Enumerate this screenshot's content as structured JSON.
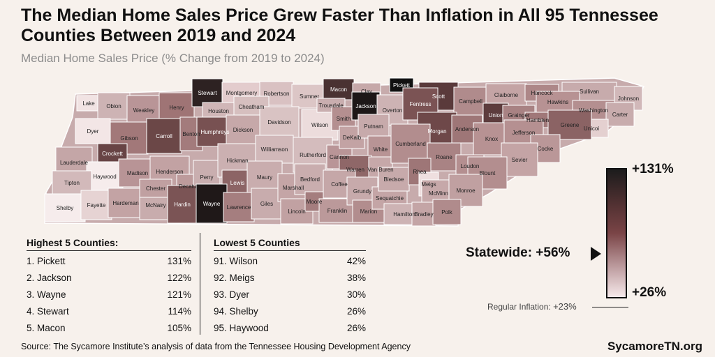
{
  "title": "The Median Home Sales Price Grew Faster Than Inflation in All 95 Tennessee Counties Between 2019 and 2024",
  "subtitle": "Median Home Sales Price (% Change from 2019 to 2024)",
  "counties": [
    {
      "name": "Lake",
      "color": "#f1e3e3"
    },
    {
      "name": "Obion",
      "color": "#cdb3b4"
    },
    {
      "name": "Weakley",
      "color": "#b99597"
    },
    {
      "name": "Henry",
      "color": "#9f7475"
    },
    {
      "name": "Stewart",
      "color": "#2d2222"
    },
    {
      "name": "Montgomery",
      "color": "#e3cccd"
    },
    {
      "name": "Robertson",
      "color": "#d9c1c2"
    },
    {
      "name": "Sumner",
      "color": "#dcc6c6"
    },
    {
      "name": "Macon",
      "color": "#4a3232"
    },
    {
      "name": "Clay",
      "color": "#c6a8a9"
    },
    {
      "name": "Pickett",
      "color": "#111111"
    },
    {
      "name": "Scott",
      "color": "#5a3a3b"
    },
    {
      "name": "Campbell",
      "color": "#b08b8c"
    },
    {
      "name": "Claiborne",
      "color": "#c4a4a5"
    },
    {
      "name": "Hancock",
      "color": "#ad8788"
    },
    {
      "name": "Sullivan",
      "color": "#c7abac"
    },
    {
      "name": "Johnson",
      "color": "#d1b8b9"
    },
    {
      "name": "Dyer",
      "color": "#f3e6e6"
    },
    {
      "name": "Gibson",
      "color": "#a27879"
    },
    {
      "name": "Carroll",
      "color": "#6b4747"
    },
    {
      "name": "Benton",
      "color": "#a37b7c"
    },
    {
      "name": "Houston",
      "color": "#d0b6b7"
    },
    {
      "name": "Humphreys",
      "color": "#785152"
    },
    {
      "name": "Cheatham",
      "color": "#d6bfbf"
    },
    {
      "name": "Dickson",
      "color": "#c6a8a9"
    },
    {
      "name": "Davidson",
      "color": "#d9c3c3"
    },
    {
      "name": "Wilson",
      "color": "#ecdcdc"
    },
    {
      "name": "Trousdale",
      "color": "#c9aeaf"
    },
    {
      "name": "Smith",
      "color": "#b48f90"
    },
    {
      "name": "Jackson",
      "color": "#1d1717"
    },
    {
      "name": "Overton",
      "color": "#cdb3b4"
    },
    {
      "name": "Fentress",
      "color": "#7b5354"
    },
    {
      "name": "Morgan",
      "color": "#6e4849"
    },
    {
      "name": "Anderson",
      "color": "#9e7677"
    },
    {
      "name": "Union",
      "color": "#5d3c3d"
    },
    {
      "name": "Grainger",
      "color": "#a88283"
    },
    {
      "name": "Hamblen",
      "color": "#a07879"
    },
    {
      "name": "Hawkins",
      "color": "#b79293"
    },
    {
      "name": "Washington",
      "color": "#b48f90"
    },
    {
      "name": "Carter",
      "color": "#c8acad"
    },
    {
      "name": "Unicoi",
      "color": "#e4d0d0"
    },
    {
      "name": "Greene",
      "color": "#8b6364"
    },
    {
      "name": "Lauderdale",
      "color": "#c4a6a7"
    },
    {
      "name": "Crockett",
      "color": "#684445"
    },
    {
      "name": "Haywood",
      "color": "#f6ecec"
    },
    {
      "name": "Madison",
      "color": "#b89496"
    },
    {
      "name": "Henderson",
      "color": "#c2a2a3"
    },
    {
      "name": "Decatur",
      "color": "#bd9b9c"
    },
    {
      "name": "Perry",
      "color": "#c9aeaf"
    },
    {
      "name": "Hickman",
      "color": "#cbb0b1"
    },
    {
      "name": "Lewis",
      "color": "#8c6465"
    },
    {
      "name": "Williamson",
      "color": "#d1b8b9"
    },
    {
      "name": "Maury",
      "color": "#c9adae"
    },
    {
      "name": "Rutherford",
      "color": "#d4bcbd"
    },
    {
      "name": "Cannon",
      "color": "#b99597"
    },
    {
      "name": "DeKalb",
      "color": "#c3a3a4"
    },
    {
      "name": "Putnam",
      "color": "#c7aaab"
    },
    {
      "name": "White",
      "color": "#b89495"
    },
    {
      "name": "Warren",
      "color": "#8f6768"
    },
    {
      "name": "Van Buren",
      "color": "#c6a8a9"
    },
    {
      "name": "Cumberland",
      "color": "#b28d8e"
    },
    {
      "name": "Roane",
      "color": "#a98384"
    },
    {
      "name": "Loudon",
      "color": "#b48f90"
    },
    {
      "name": "Knox",
      "color": "#b79293"
    },
    {
      "name": "Jefferson",
      "color": "#b59091"
    },
    {
      "name": "Cocke",
      "color": "#ba9798"
    },
    {
      "name": "Sevier",
      "color": "#c4a4a5"
    },
    {
      "name": "Blount",
      "color": "#b38e8f"
    },
    {
      "name": "Tipton",
      "color": "#d2b9ba"
    },
    {
      "name": "Shelby",
      "color": "#f6ecec"
    },
    {
      "name": "Fayette",
      "color": "#e6d3d3"
    },
    {
      "name": "Hardeman",
      "color": "#c3a3a4"
    },
    {
      "name": "McNairy",
      "color": "#c8acad"
    },
    {
      "name": "Chester",
      "color": "#c0a0a1"
    },
    {
      "name": "Hardin",
      "color": "#7b5455"
    },
    {
      "name": "Wayne",
      "color": "#1f1818"
    },
    {
      "name": "Lawrence",
      "color": "#a57e7f"
    },
    {
      "name": "Giles",
      "color": "#c8acad"
    },
    {
      "name": "Marshall",
      "color": "#c4a5a6"
    },
    {
      "name": "Bedford",
      "color": "#c9adae"
    },
    {
      "name": "Lincoln",
      "color": "#c1a1a2"
    },
    {
      "name": "Moore",
      "color": "#a47d7e"
    },
    {
      "name": "Coffee",
      "color": "#c5a7a8"
    },
    {
      "name": "Franklin",
      "color": "#bb999a"
    },
    {
      "name": "Grundy",
      "color": "#c7aaab"
    },
    {
      "name": "Marion",
      "color": "#b28d8e"
    },
    {
      "name": "Sequatchie",
      "color": "#c4a5a6"
    },
    {
      "name": "Bledsoe",
      "color": "#c7aaab"
    },
    {
      "name": "Rhea",
      "color": "#9e7677"
    },
    {
      "name": "Meigs",
      "color": "#efdfdf"
    },
    {
      "name": "McMinn",
      "color": "#c6a8a9"
    },
    {
      "name": "Monroe",
      "color": "#c0a0a1"
    },
    {
      "name": "Hamilton",
      "color": "#cdb3b4"
    },
    {
      "name": "Bradley",
      "color": "#c4a5a6"
    },
    {
      "name": "Polk",
      "color": "#b08b8c"
    }
  ],
  "highest": {
    "header": "Highest 5 Counties:",
    "rows": [
      {
        "name": "1. Pickett",
        "value": "131%"
      },
      {
        "name": "2. Jackson",
        "value": "122%"
      },
      {
        "name": "3. Wayne",
        "value": "121%"
      },
      {
        "name": "4. Stewart",
        "value": "114%"
      },
      {
        "name": "5. Macon",
        "value": "105%"
      }
    ]
  },
  "lowest": {
    "header": "Lowest 5 Counties",
    "rows": [
      {
        "name": "91. Wilson",
        "value": "42%"
      },
      {
        "name": "92. Meigs",
        "value": "38%"
      },
      {
        "name": "93. Dyer",
        "value": "30%"
      },
      {
        "name": "94. Shelby",
        "value": "26%"
      },
      {
        "name": "95. Haywood",
        "value": "26%"
      }
    ]
  },
  "legend": {
    "max_label": "+131%",
    "min_label": "+26%",
    "statewide": "Statewide: +56%",
    "inflation_text": "Regular Inflation: ",
    "inflation_value": "+23%"
  },
  "source": "Source: The Sycamore Institute’s analysis of data from the Tennessee Housing Development Agency",
  "brand": "SycamoreTN.org"
}
